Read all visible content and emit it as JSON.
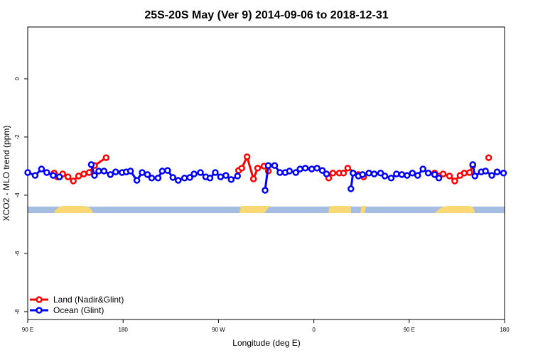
{
  "chart_data": {
    "type": "line",
    "title": "25S-20S May (Ver 9)   2014-09-06 to 2018-12-31",
    "x_label": "Longitude (deg E)",
    "y_label": "XCO2 - MLO trend (ppm)",
    "xlim": [
      90,
      540
    ],
    "xticks": [
      {
        "value": 90,
        "label": "90 E"
      },
      180,
      {
        "value": 270,
        "label": "90 W"
      },
      {
        "value": 360,
        "label": "0"
      },
      {
        "value": 450,
        "label": "90 E"
      },
      {
        "value": 540,
        "label": "180"
      }
    ],
    "ylim": [
      -8.27,
      1.78
    ],
    "yticks": [
      -8,
      -6,
      -4,
      -2,
      0
    ],
    "legend": "bottomleft",
    "series": [
      {
        "name": "Land (Nadir&Glint)",
        "color": "#ff0000",
        "x": [
          115,
          118,
          123,
          128,
          133,
          138,
          143,
          148,
          153,
          164,
          200,
          289,
          292,
          297,
          303,
          307,
          313,
          317,
          350,
          374,
          378,
          384,
          388,
          392,
          402,
          407,
          450,
          474,
          478,
          482,
          488,
          493,
          498,
          502,
          507,
          510,
          520,
          525
        ],
        "values": [
          -3.24,
          -3.37,
          -3.27,
          -3.37,
          -3.51,
          -3.34,
          -3.27,
          -3.22,
          -2.98,
          -2.71,
          null,
          -3.15,
          -3.07,
          -2.68,
          -3.44,
          -3.07,
          -3.0,
          -3.17,
          null,
          -3.41,
          -3.24,
          -3.24,
          -3.24,
          -3.07,
          -3.29,
          -3.37,
          null,
          -3.24,
          -3.34,
          -3.27,
          -3.34,
          -3.51,
          -3.32,
          -3.24,
          -3.22,
          -2.98,
          null,
          -2.71
        ]
      },
      {
        "name": "Ocean (Glint)",
        "color": "#0000ff",
        "x": [
          90,
          97,
          103,
          108,
          114,
          120,
          135,
          150,
          153,
          157,
          162,
          168,
          173,
          179,
          183,
          187,
          193,
          198,
          203,
          207,
          213,
          217,
          222,
          227,
          232,
          238,
          243,
          247,
          253,
          258,
          262,
          267,
          272,
          277,
          282,
          288,
          300,
          314,
          317,
          323,
          328,
          333,
          337,
          343,
          347,
          352,
          358,
          363,
          368,
          372,
          383,
          395,
          397,
          402,
          406,
          412,
          417,
          423,
          427,
          433,
          438,
          443,
          448,
          453,
          458,
          463,
          468,
          474,
          478,
          494,
          510,
          512,
          518,
          522,
          528,
          533,
          539
        ],
        "values": [
          -3.22,
          -3.32,
          -3.1,
          -3.22,
          -3.32,
          -3.37,
          null,
          -2.95,
          -3.32,
          -3.17,
          -3.17,
          -3.29,
          -3.2,
          -3.22,
          -3.2,
          -3.17,
          -3.49,
          -3.22,
          -3.29,
          -3.41,
          -3.41,
          -3.17,
          -3.15,
          -3.39,
          -3.49,
          -3.41,
          -3.39,
          -3.27,
          -3.22,
          -3.37,
          -3.41,
          -3.22,
          -3.37,
          -3.32,
          -3.46,
          -3.34,
          null,
          -3.83,
          -2.98,
          -2.98,
          -3.22,
          -3.22,
          -3.17,
          -3.22,
          -3.1,
          -3.07,
          -3.1,
          -3.07,
          -3.15,
          -3.27,
          null,
          -3.78,
          -3.24,
          -3.34,
          -3.29,
          -3.24,
          -3.27,
          -3.24,
          -3.34,
          -3.41,
          -3.27,
          -3.29,
          -3.32,
          -3.24,
          -3.32,
          -3.1,
          -3.24,
          -3.29,
          -3.41,
          null,
          -2.95,
          -3.34,
          -3.2,
          -3.17,
          -3.32,
          -3.2,
          -3.24
        ]
      }
    ]
  }
}
